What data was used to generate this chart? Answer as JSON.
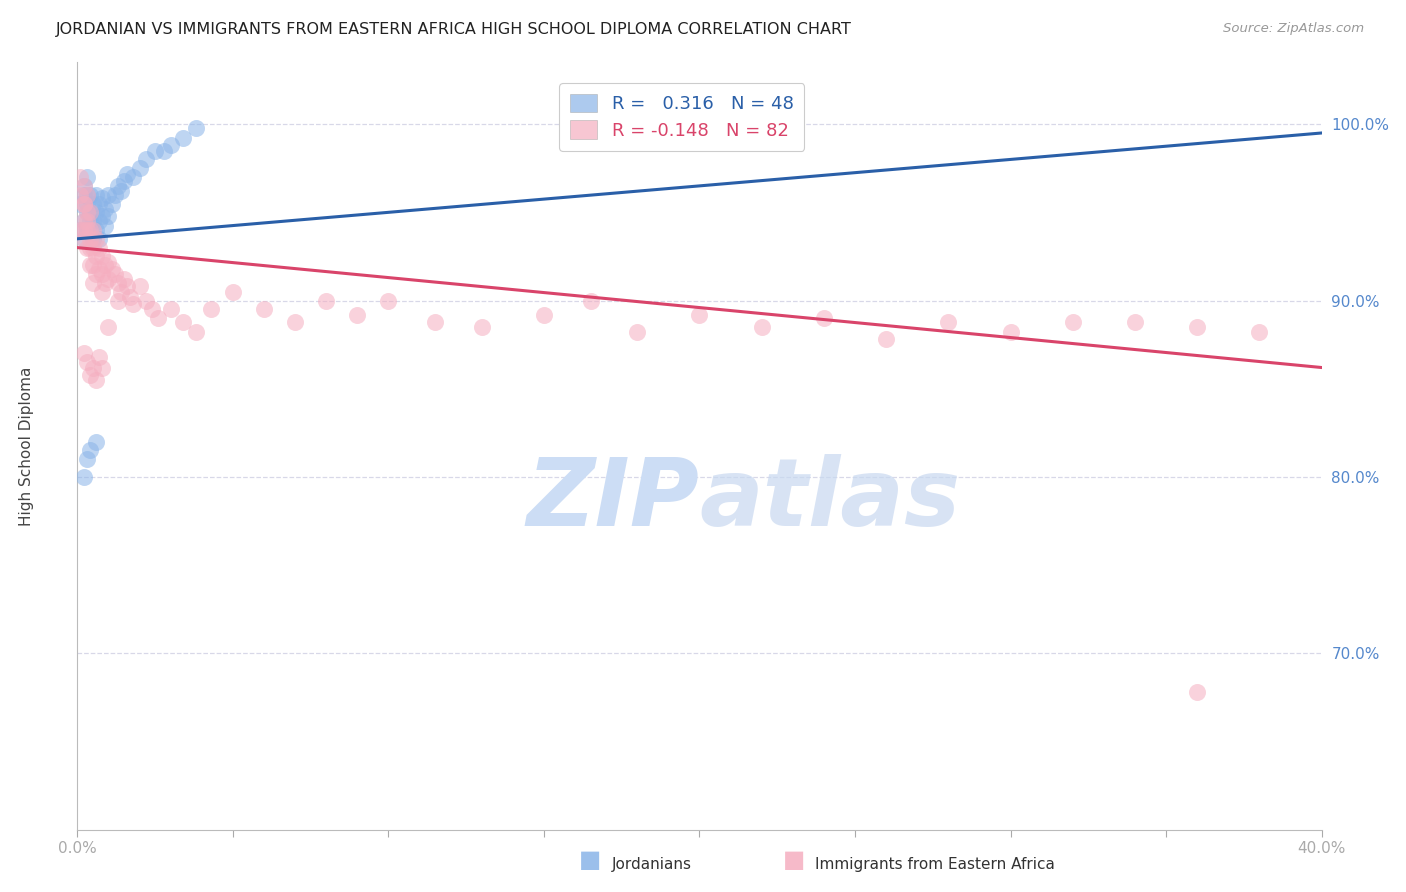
{
  "title": "JORDANIAN VS IMMIGRANTS FROM EASTERN AFRICA HIGH SCHOOL DIPLOMA CORRELATION CHART",
  "source": "Source: ZipAtlas.com",
  "ylabel": "High School Diploma",
  "xlim": [
    0.0,
    0.4
  ],
  "ylim": [
    0.6,
    1.035
  ],
  "ytick_vals": [
    0.7,
    0.8,
    0.9,
    1.0
  ],
  "ytick_labels": [
    "70.0%",
    "80.0%",
    "90.0%",
    "100.0%"
  ],
  "xtick_vals": [
    0.0,
    0.05,
    0.1,
    0.15,
    0.2,
    0.25,
    0.3,
    0.35,
    0.4
  ],
  "xtick_labels_show": {
    "0.0": "0.0%",
    "0.4": "40.0%"
  },
  "legend_labels": [
    "Jordanians",
    "Immigrants from Eastern Africa"
  ],
  "r_jordanian": 0.316,
  "n_jordanian": 48,
  "r_eastern_africa": -0.148,
  "n_eastern_africa": 82,
  "blue_color": "#8ab4e8",
  "pink_color": "#f5aec0",
  "blue_line_color": "#2a5fa8",
  "pink_line_color": "#d9446a",
  "background_color": "#ffffff",
  "grid_color": "#d8d8e8",
  "watermark_text": "ZIPatlas",
  "watermark_color": "#ccddf5",
  "title_color": "#222222",
  "axis_label_color": "#444444",
  "right_tick_color": "#5588cc",
  "blue_trendline": [
    0.0,
    0.935,
    0.4,
    0.995
  ],
  "pink_trendline": [
    0.0,
    0.93,
    0.4,
    0.862
  ],
  "jordanian_x": [
    0.001,
    0.001,
    0.002,
    0.002,
    0.002,
    0.002,
    0.003,
    0.003,
    0.003,
    0.003,
    0.003,
    0.004,
    0.004,
    0.004,
    0.004,
    0.005,
    0.005,
    0.005,
    0.006,
    0.006,
    0.006,
    0.007,
    0.007,
    0.007,
    0.008,
    0.008,
    0.009,
    0.009,
    0.01,
    0.01,
    0.011,
    0.012,
    0.013,
    0.014,
    0.015,
    0.016,
    0.018,
    0.02,
    0.022,
    0.025,
    0.028,
    0.03,
    0.034,
    0.038,
    0.002,
    0.003,
    0.004,
    0.006
  ],
  "jordanian_y": [
    0.94,
    0.955,
    0.96,
    0.945,
    0.935,
    0.965,
    0.95,
    0.94,
    0.96,
    0.97,
    0.955,
    0.945,
    0.96,
    0.95,
    0.94,
    0.945,
    0.955,
    0.935,
    0.95,
    0.94,
    0.96,
    0.945,
    0.955,
    0.935,
    0.948,
    0.958,
    0.952,
    0.942,
    0.96,
    0.948,
    0.955,
    0.96,
    0.965,
    0.962,
    0.968,
    0.972,
    0.97,
    0.975,
    0.98,
    0.985,
    0.985,
    0.988,
    0.992,
    0.998,
    0.8,
    0.81,
    0.815,
    0.82
  ],
  "eastern_africa_x": [
    0.001,
    0.001,
    0.001,
    0.002,
    0.002,
    0.002,
    0.002,
    0.002,
    0.002,
    0.003,
    0.003,
    0.003,
    0.003,
    0.003,
    0.004,
    0.004,
    0.004,
    0.004,
    0.004,
    0.005,
    0.005,
    0.005,
    0.005,
    0.006,
    0.006,
    0.006,
    0.007,
    0.007,
    0.008,
    0.008,
    0.008,
    0.009,
    0.009,
    0.01,
    0.01,
    0.011,
    0.012,
    0.013,
    0.013,
    0.014,
    0.015,
    0.016,
    0.017,
    0.018,
    0.02,
    0.022,
    0.024,
    0.026,
    0.03,
    0.034,
    0.038,
    0.043,
    0.05,
    0.06,
    0.07,
    0.08,
    0.09,
    0.1,
    0.115,
    0.13,
    0.15,
    0.165,
    0.18,
    0.2,
    0.22,
    0.24,
    0.26,
    0.28,
    0.3,
    0.32,
    0.34,
    0.36,
    0.38,
    0.002,
    0.003,
    0.004,
    0.005,
    0.006,
    0.007,
    0.008,
    0.01,
    0.36
  ],
  "eastern_africa_y": [
    0.97,
    0.96,
    0.94,
    0.965,
    0.955,
    0.945,
    0.935,
    0.955,
    0.94,
    0.96,
    0.95,
    0.94,
    0.93,
    0.945,
    0.95,
    0.94,
    0.93,
    0.92,
    0.935,
    0.94,
    0.93,
    0.92,
    0.91,
    0.935,
    0.925,
    0.915,
    0.93,
    0.918,
    0.925,
    0.915,
    0.905,
    0.92,
    0.91,
    0.922,
    0.912,
    0.918,
    0.915,
    0.91,
    0.9,
    0.905,
    0.912,
    0.908,
    0.902,
    0.898,
    0.908,
    0.9,
    0.895,
    0.89,
    0.895,
    0.888,
    0.882,
    0.895,
    0.905,
    0.895,
    0.888,
    0.9,
    0.892,
    0.9,
    0.888,
    0.885,
    0.892,
    0.9,
    0.882,
    0.892,
    0.885,
    0.89,
    0.878,
    0.888,
    0.882,
    0.888,
    0.888,
    0.885,
    0.882,
    0.87,
    0.865,
    0.858,
    0.862,
    0.855,
    0.868,
    0.862,
    0.885,
    0.678
  ]
}
